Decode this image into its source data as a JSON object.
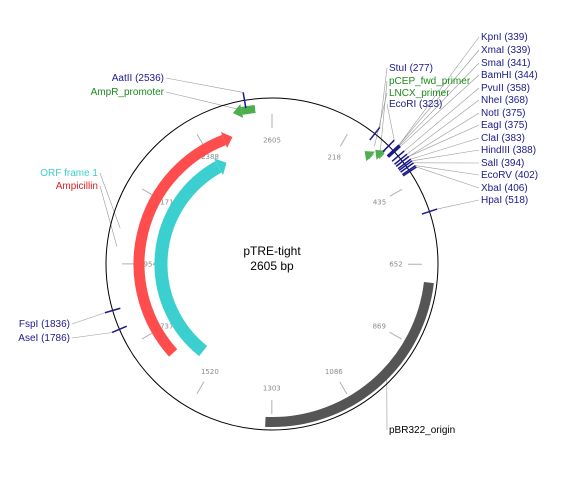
{
  "plasmid": {
    "name": "pTRE-tight",
    "length_label": "2605 bp",
    "length": 2605
  },
  "colors": {
    "enzyme": "#1a1a8c",
    "primer": "#1a8a1a",
    "ampicillin": "#e02020",
    "orf": "#cc2020",
    "orf_arc": "#3ccfcf",
    "ampicillin_arc": "#ff4c4c",
    "origin_arc": "#555555",
    "promoter_arrow": "#4cae4c",
    "tick_line": "#b0b0b0",
    "leader": "#999999"
  },
  "ticks": [
    {
      "pos": 218,
      "label": "218"
    },
    {
      "pos": 435,
      "label": "435"
    },
    {
      "pos": 652,
      "label": "652"
    },
    {
      "pos": 869,
      "label": "869"
    },
    {
      "pos": 1086,
      "label": "1086"
    },
    {
      "pos": 1303,
      "label": "1303"
    },
    {
      "pos": 1520,
      "label": "1520"
    },
    {
      "pos": 1737,
      "label": "1737"
    },
    {
      "pos": 1954,
      "label": "1954"
    },
    {
      "pos": 2171,
      "label": "2171"
    },
    {
      "pos": 2388,
      "label": "2388"
    },
    {
      "pos": 2605,
      "label": "2605"
    }
  ],
  "features": [
    {
      "name": "Ampicillin",
      "start": 1650,
      "end": 2480,
      "direction": "forward"
    },
    {
      "name": "ORF frame 1",
      "start": 1580,
      "end": 2430,
      "direction": "forward"
    },
    {
      "name": "pBR322_origin",
      "start": 700,
      "end": 1320,
      "direction": "none"
    },
    {
      "name": "AmpR_promoter",
      "start": 2500,
      "end": 2560,
      "direction": "reverse"
    },
    {
      "name": "pCEP_fwd_primer",
      "start": 305,
      "end": 330,
      "direction": "reverse"
    },
    {
      "name": "LNCX_primer",
      "start": 285,
      "end": 310,
      "direction": "reverse"
    }
  ],
  "sites": [
    {
      "label": "AatII (2536)",
      "pos": 2536,
      "color": "enzyme"
    },
    {
      "label": "FspI (1836)",
      "pos": 1836,
      "color": "enzyme"
    },
    {
      "label": "AseI (1786)",
      "pos": 1786,
      "color": "enzyme"
    },
    {
      "label": "StuI (277)",
      "pos": 277,
      "color": "enzyme"
    },
    {
      "label": "EcoRI (323)",
      "pos": 323,
      "color": "enzyme"
    },
    {
      "label": "KpnI (339)",
      "pos": 339,
      "color": "enzyme"
    },
    {
      "label": "XmaI (339)",
      "pos": 339,
      "color": "enzyme"
    },
    {
      "label": "SmaI (341)",
      "pos": 341,
      "color": "enzyme"
    },
    {
      "label": "BamHI (344)",
      "pos": 344,
      "color": "enzyme"
    },
    {
      "label": "PvuII (358)",
      "pos": 358,
      "color": "enzyme"
    },
    {
      "label": "NheI (368)",
      "pos": 368,
      "color": "enzyme"
    },
    {
      "label": "NotI (375)",
      "pos": 375,
      "color": "enzyme"
    },
    {
      "label": "EagI (375)",
      "pos": 375,
      "color": "enzyme"
    },
    {
      "label": "ClaI (383)",
      "pos": 383,
      "color": "enzyme"
    },
    {
      "label": "HindIII (388)",
      "pos": 388,
      "color": "enzyme"
    },
    {
      "label": "SalI (394)",
      "pos": 394,
      "color": "enzyme"
    },
    {
      "label": "EcoRV (402)",
      "pos": 402,
      "color": "enzyme"
    },
    {
      "label": "XbaI (406)",
      "pos": 406,
      "color": "enzyme"
    },
    {
      "label": "HpaI (518)",
      "pos": 518,
      "color": "enzyme"
    }
  ],
  "feature_labels": [
    {
      "label": "ORF frame 1",
      "color": "orf_arc",
      "anchor_pos": 2050
    },
    {
      "label": "Ampicillin",
      "color": "ampicillin",
      "anchor_pos": 2000
    },
    {
      "label": "AmpR_promoter",
      "color": "primer",
      "anchor_pos": 2530
    },
    {
      "label": "pCEP_fwd_primer",
      "color": "primer",
      "anchor_pos": 318
    },
    {
      "label": "LNCX_primer",
      "color": "primer",
      "anchor_pos": 297
    },
    {
      "label": "pBR322_origin",
      "color": "text",
      "anchor_pos": 960
    }
  ]
}
